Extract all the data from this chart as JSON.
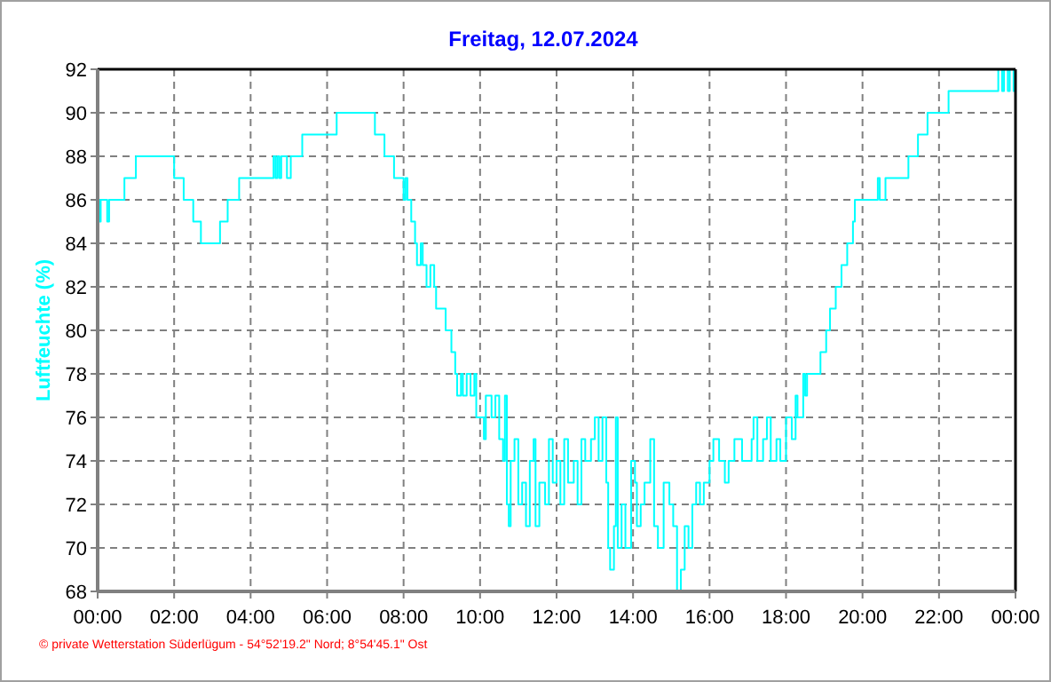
{
  "chart_data": {
    "type": "step",
    "title": "Freitag, 12.07.2024",
    "ylabel": "Luftfeuchte (%)",
    "annotations": [
      "© private Wetterstation Süderlügum  -  54°52'19.2\" Nord; 8°54'45.1\" Ost"
    ],
    "xlim": [
      0,
      24
    ],
    "ylim": [
      68,
      92
    ],
    "xticks": [
      {
        "value": 0,
        "label": "00:00"
      },
      {
        "value": 2,
        "label": "02:00"
      },
      {
        "value": 4,
        "label": "04:00"
      },
      {
        "value": 6,
        "label": "06:00"
      },
      {
        "value": 8,
        "label": "08:00"
      },
      {
        "value": 10,
        "label": "10:00"
      },
      {
        "value": 12,
        "label": "12:00"
      },
      {
        "value": 14,
        "label": "14:00"
      },
      {
        "value": 16,
        "label": "16:00"
      },
      {
        "value": 18,
        "label": "18:00"
      },
      {
        "value": 20,
        "label": "20:00"
      },
      {
        "value": 22,
        "label": "22:00"
      },
      {
        "value": 24,
        "label": "00:00"
      }
    ],
    "yticks": [
      68,
      70,
      72,
      74,
      76,
      78,
      80,
      82,
      84,
      86,
      88,
      90,
      92
    ],
    "grid": true,
    "line_style": "solid",
    "series": [
      {
        "color": "#00ffff",
        "x": [
          0,
          0.05,
          0.08,
          0.25,
          0.3,
          0.7,
          1.0,
          2.0,
          2.25,
          2.5,
          2.7,
          3.2,
          3.4,
          3.7,
          4.6,
          4.65,
          4.7,
          4.75,
          4.8,
          4.95,
          5.05,
          5.35,
          6.25,
          7.25,
          7.5,
          7.75,
          8.0,
          8.05,
          8.1,
          8.2,
          8.3,
          8.35,
          8.45,
          8.5,
          8.6,
          8.7,
          8.8,
          8.85,
          9.1,
          9.25,
          9.35,
          9.4,
          9.5,
          9.55,
          9.65,
          9.75,
          9.85,
          9.9,
          10.1,
          10.15,
          10.3,
          10.4,
          10.5,
          10.6,
          10.65,
          10.7,
          10.75,
          10.8,
          10.9,
          11.0,
          11.1,
          11.2,
          11.3,
          11.4,
          11.45,
          11.55,
          11.7,
          11.8,
          11.9,
          12.0,
          12.1,
          12.2,
          12.3,
          12.45,
          12.55,
          12.65,
          12.75,
          12.9,
          13.0,
          13.1,
          13.2,
          13.3,
          13.35,
          13.4,
          13.5,
          13.55,
          13.6,
          13.7,
          13.8,
          13.95,
          14.05,
          14.1,
          14.2,
          14.3,
          14.45,
          14.55,
          14.65,
          14.8,
          14.95,
          15.05,
          15.15,
          15.25,
          15.35,
          15.45,
          15.55,
          15.65,
          15.75,
          15.85,
          16.0,
          16.1,
          16.25,
          16.4,
          16.5,
          16.65,
          16.85,
          17.1,
          17.15,
          17.25,
          17.4,
          17.5,
          17.6,
          17.75,
          17.85,
          18.0,
          18.15,
          18.25,
          18.3,
          18.45,
          18.5,
          18.55,
          18.9,
          19.05,
          19.15,
          19.3,
          19.45,
          19.6,
          19.75,
          19.8,
          20.4,
          20.45,
          20.6,
          21.2,
          21.45,
          21.7,
          22.25,
          23.55,
          23.65,
          23.7,
          23.8,
          23.85,
          23.95,
          24.0
        ],
        "values": [
          86,
          85,
          86,
          85,
          86,
          87,
          88,
          87,
          86,
          85,
          84,
          85,
          86,
          87,
          88,
          87,
          88,
          87,
          88,
          87,
          88,
          89,
          90,
          89,
          88,
          87,
          86,
          87,
          86,
          85,
          84,
          83,
          84,
          83,
          82,
          83,
          82,
          81,
          80,
          79,
          78,
          77,
          78,
          77,
          78,
          77,
          78,
          76,
          75,
          77,
          76,
          77,
          75,
          74,
          77,
          72,
          71,
          74,
          75,
          72,
          73,
          71,
          74,
          75,
          71,
          73,
          72,
          75,
          73,
          74,
          72,
          75,
          73,
          74,
          72,
          75,
          74,
          75,
          76,
          74,
          76,
          73,
          70,
          69,
          71,
          76,
          70,
          72,
          70,
          74,
          73,
          71,
          72,
          73,
          75,
          71,
          70,
          73,
          72,
          71,
          68,
          69,
          71,
          70,
          72,
          73,
          72,
          73,
          74,
          75,
          74,
          73,
          74,
          75,
          74,
          75,
          76,
          74,
          75,
          76,
          74,
          75,
          74,
          76,
          75,
          77,
          76,
          78,
          77,
          78,
          79,
          80,
          81,
          82,
          83,
          84,
          85,
          86,
          87,
          86,
          87,
          88,
          89,
          90,
          91,
          92,
          91,
          92,
          91,
          92,
          91,
          91
        ]
      }
    ]
  }
}
